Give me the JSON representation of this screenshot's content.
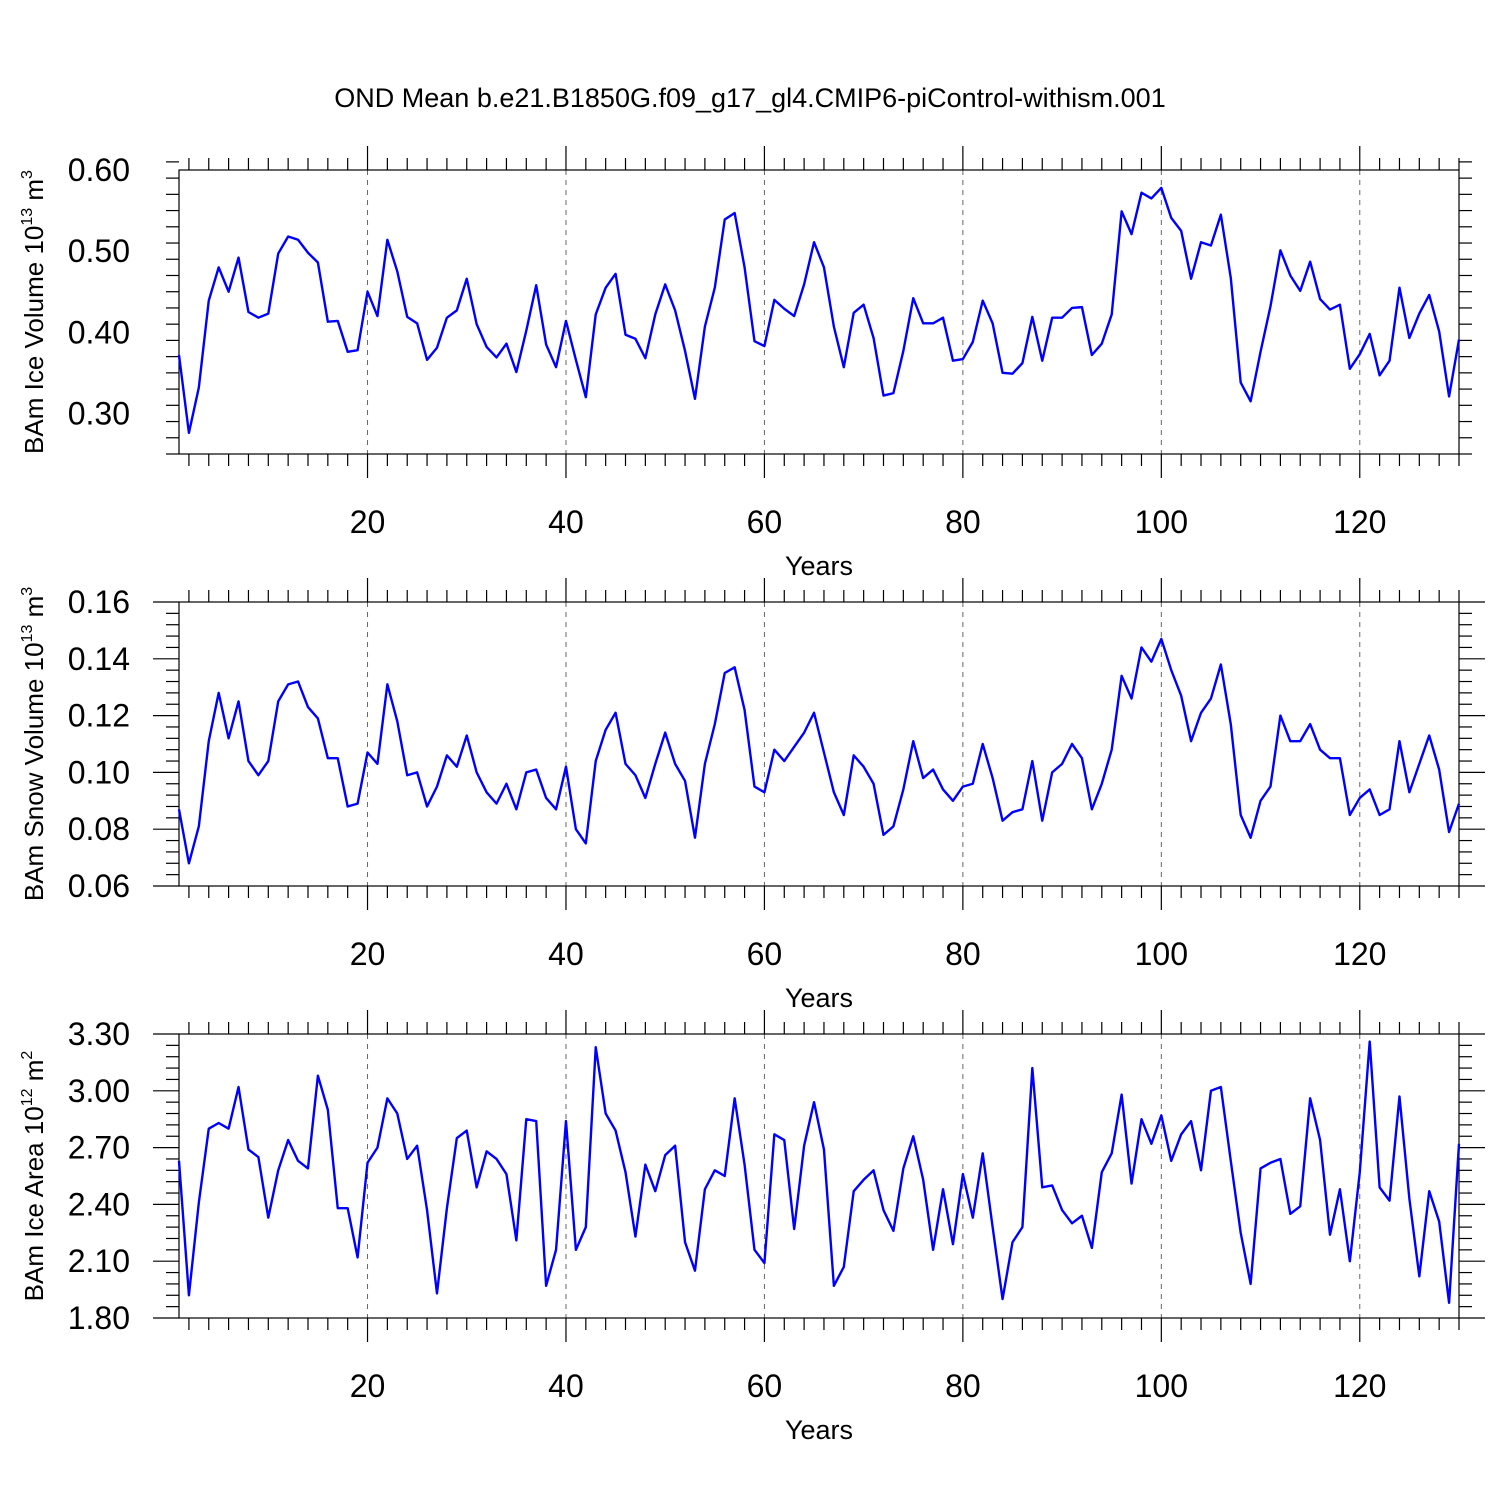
{
  "title": "OND Mean b.e21.B1850G.f09_g17_gl4.CMIP6-piControl-withism.001",
  "chart_data": [
    {
      "type": "line",
      "name": "ice-volume",
      "ylabel_main": "BAm Ice Volume 10",
      "ylabel_exp": "13",
      "ylabel_unit": " m",
      "ylabel_unit_exp": "3",
      "xlabel": "Years",
      "xlim": [
        1,
        130
      ],
      "ylim": [
        0.25,
        0.6
      ],
      "xticks": [
        20,
        40,
        60,
        80,
        100,
        120
      ],
      "xtick_labels": [
        "20",
        "40",
        "60",
        "80",
        "100",
        "120"
      ],
      "yticks": [
        0.3,
        0.4,
        0.5,
        0.6
      ],
      "ytick_labels": [
        "0.30",
        "0.40",
        "0.50",
        "0.60"
      ],
      "y_minor_step": 0.02,
      "vgrid": [
        20,
        40,
        60,
        80,
        100,
        120
      ],
      "series": [
        {
          "name": "BAm Ice Volume",
          "color": "#0000ff",
          "x_start": 1,
          "values": [
            0.372,
            0.276,
            0.332,
            0.439,
            0.48,
            0.45,
            0.492,
            0.425,
            0.418,
            0.423,
            0.497,
            0.518,
            0.514,
            0.498,
            0.486,
            0.413,
            0.414,
            0.376,
            0.378,
            0.45,
            0.42,
            0.514,
            0.475,
            0.419,
            0.411,
            0.366,
            0.381,
            0.418,
            0.427,
            0.466,
            0.41,
            0.382,
            0.369,
            0.386,
            0.351,
            0.402,
            0.458,
            0.385,
            0.357,
            0.414,
            0.366,
            0.32,
            0.422,
            0.455,
            0.472,
            0.397,
            0.392,
            0.368,
            0.422,
            0.459,
            0.427,
            0.377,
            0.318,
            0.407,
            0.455,
            0.539,
            0.547,
            0.48,
            0.389,
            0.383,
            0.44,
            0.429,
            0.42,
            0.459,
            0.511,
            0.48,
            0.407,
            0.357,
            0.424,
            0.434,
            0.393,
            0.322,
            0.325,
            0.377,
            0.442,
            0.411,
            0.411,
            0.418,
            0.365,
            0.367,
            0.388,
            0.439,
            0.411,
            0.35,
            0.349,
            0.362,
            0.419,
            0.365,
            0.418,
            0.418,
            0.43,
            0.431,
            0.372,
            0.386,
            0.422,
            0.549,
            0.521,
            0.572,
            0.565,
            0.578,
            0.541,
            0.525,
            0.466,
            0.511,
            0.507,
            0.545,
            0.467,
            0.338,
            0.315,
            0.376,
            0.432,
            0.501,
            0.47,
            0.451,
            0.487,
            0.441,
            0.428,
            0.434,
            0.355,
            0.373,
            0.398,
            0.347,
            0.365,
            0.455,
            0.393,
            0.423,
            0.446,
            0.401,
            0.321,
            0.391
          ]
        }
      ]
    },
    {
      "type": "line",
      "name": "snow-volume",
      "ylabel_main": "BAm Snow Volume 10",
      "ylabel_exp": "13",
      "ylabel_unit": " m",
      "ylabel_unit_exp": "3",
      "xlabel": "Years",
      "xlim": [
        1,
        130
      ],
      "ylim": [
        0.06,
        0.16
      ],
      "xticks": [
        20,
        40,
        60,
        80,
        100,
        120
      ],
      "xtick_labels": [
        "20",
        "40",
        "60",
        "80",
        "100",
        "120"
      ],
      "yticks": [
        0.06,
        0.08,
        0.1,
        0.12,
        0.14,
        0.16
      ],
      "ytick_labels": [
        "0.06",
        "0.08",
        "0.10",
        "0.12",
        "0.14",
        "0.16"
      ],
      "y_minor_step": 0.004,
      "vgrid": [
        20,
        40,
        60,
        80,
        100,
        120
      ],
      "series": [
        {
          "name": "BAm Snow Volume",
          "color": "#0000ff",
          "x_start": 1,
          "values": [
            0.087,
            0.068,
            0.081,
            0.111,
            0.128,
            0.112,
            0.125,
            0.104,
            0.099,
            0.104,
            0.125,
            0.131,
            0.132,
            0.123,
            0.119,
            0.105,
            0.105,
            0.088,
            0.089,
            0.107,
            0.103,
            0.131,
            0.118,
            0.099,
            0.1,
            0.088,
            0.095,
            0.106,
            0.102,
            0.113,
            0.1,
            0.093,
            0.089,
            0.096,
            0.087,
            0.1,
            0.101,
            0.091,
            0.087,
            0.102,
            0.08,
            0.075,
            0.104,
            0.115,
            0.121,
            0.103,
            0.099,
            0.091,
            0.103,
            0.114,
            0.103,
            0.097,
            0.077,
            0.103,
            0.117,
            0.135,
            0.137,
            0.122,
            0.095,
            0.093,
            0.108,
            0.104,
            0.109,
            0.114,
            0.121,
            0.107,
            0.093,
            0.085,
            0.106,
            0.102,
            0.096,
            0.078,
            0.081,
            0.094,
            0.111,
            0.098,
            0.101,
            0.094,
            0.09,
            0.095,
            0.096,
            0.11,
            0.098,
            0.083,
            0.086,
            0.087,
            0.104,
            0.083,
            0.1,
            0.103,
            0.11,
            0.105,
            0.087,
            0.096,
            0.108,
            0.134,
            0.126,
            0.144,
            0.139,
            0.147,
            0.136,
            0.127,
            0.111,
            0.121,
            0.126,
            0.138,
            0.117,
            0.085,
            0.077,
            0.09,
            0.095,
            0.12,
            0.111,
            0.111,
            0.117,
            0.108,
            0.105,
            0.105,
            0.085,
            0.091,
            0.094,
            0.085,
            0.087,
            0.111,
            0.093,
            0.103,
            0.113,
            0.101,
            0.079,
            0.089
          ]
        }
      ]
    },
    {
      "type": "line",
      "name": "ice-area",
      "ylabel_main": "BAm Ice Area 10",
      "ylabel_exp": "12",
      "ylabel_unit": " m",
      "ylabel_unit_exp": "2",
      "xlabel": "Years",
      "xlim": [
        1,
        130
      ],
      "ylim": [
        1.8,
        3.3
      ],
      "xticks": [
        20,
        40,
        60,
        80,
        100,
        120
      ],
      "xtick_labels": [
        "20",
        "40",
        "60",
        "80",
        "100",
        "120"
      ],
      "yticks": [
        1.8,
        2.1,
        2.4,
        2.7,
        3.0,
        3.3
      ],
      "ytick_labels": [
        "1.80",
        "2.10",
        "2.40",
        "2.70",
        "3.00",
        "3.30"
      ],
      "y_minor_step": 0.06,
      "vgrid": [
        20,
        40,
        60,
        80,
        100,
        120
      ],
      "series": [
        {
          "name": "BAm Ice Area",
          "color": "#0000ff",
          "x_start": 1,
          "values": [
            2.63,
            1.92,
            2.41,
            2.8,
            2.83,
            2.8,
            3.02,
            2.69,
            2.65,
            2.33,
            2.58,
            2.74,
            2.63,
            2.59,
            3.08,
            2.9,
            2.38,
            2.38,
            2.12,
            2.62,
            2.7,
            2.96,
            2.88,
            2.64,
            2.71,
            2.37,
            1.93,
            2.38,
            2.75,
            2.79,
            2.49,
            2.68,
            2.64,
            2.56,
            2.21,
            2.85,
            2.84,
            1.97,
            2.16,
            2.84,
            2.16,
            2.28,
            3.23,
            2.88,
            2.79,
            2.57,
            2.23,
            2.61,
            2.47,
            2.66,
            2.71,
            2.2,
            2.05,
            2.48,
            2.58,
            2.55,
            2.96,
            2.61,
            2.16,
            2.09,
            2.77,
            2.74,
            2.27,
            2.71,
            2.94,
            2.69,
            1.97,
            2.07,
            2.47,
            2.53,
            2.58,
            2.37,
            2.26,
            2.59,
            2.76,
            2.53,
            2.16,
            2.48,
            2.19,
            2.56,
            2.33,
            2.67,
            2.28,
            1.9,
            2.2,
            2.28,
            3.12,
            2.49,
            2.5,
            2.37,
            2.3,
            2.34,
            2.17,
            2.57,
            2.67,
            2.98,
            2.51,
            2.85,
            2.72,
            2.87,
            2.63,
            2.77,
            2.84,
            2.58,
            3.0,
            3.02,
            2.63,
            2.25,
            1.98,
            2.59,
            2.62,
            2.64,
            2.35,
            2.39,
            2.96,
            2.74,
            2.24,
            2.48,
            2.1,
            2.57,
            3.26,
            2.49,
            2.42,
            2.97,
            2.43,
            2.02,
            2.47,
            2.31,
            1.88,
            2.72
          ]
        }
      ]
    }
  ]
}
